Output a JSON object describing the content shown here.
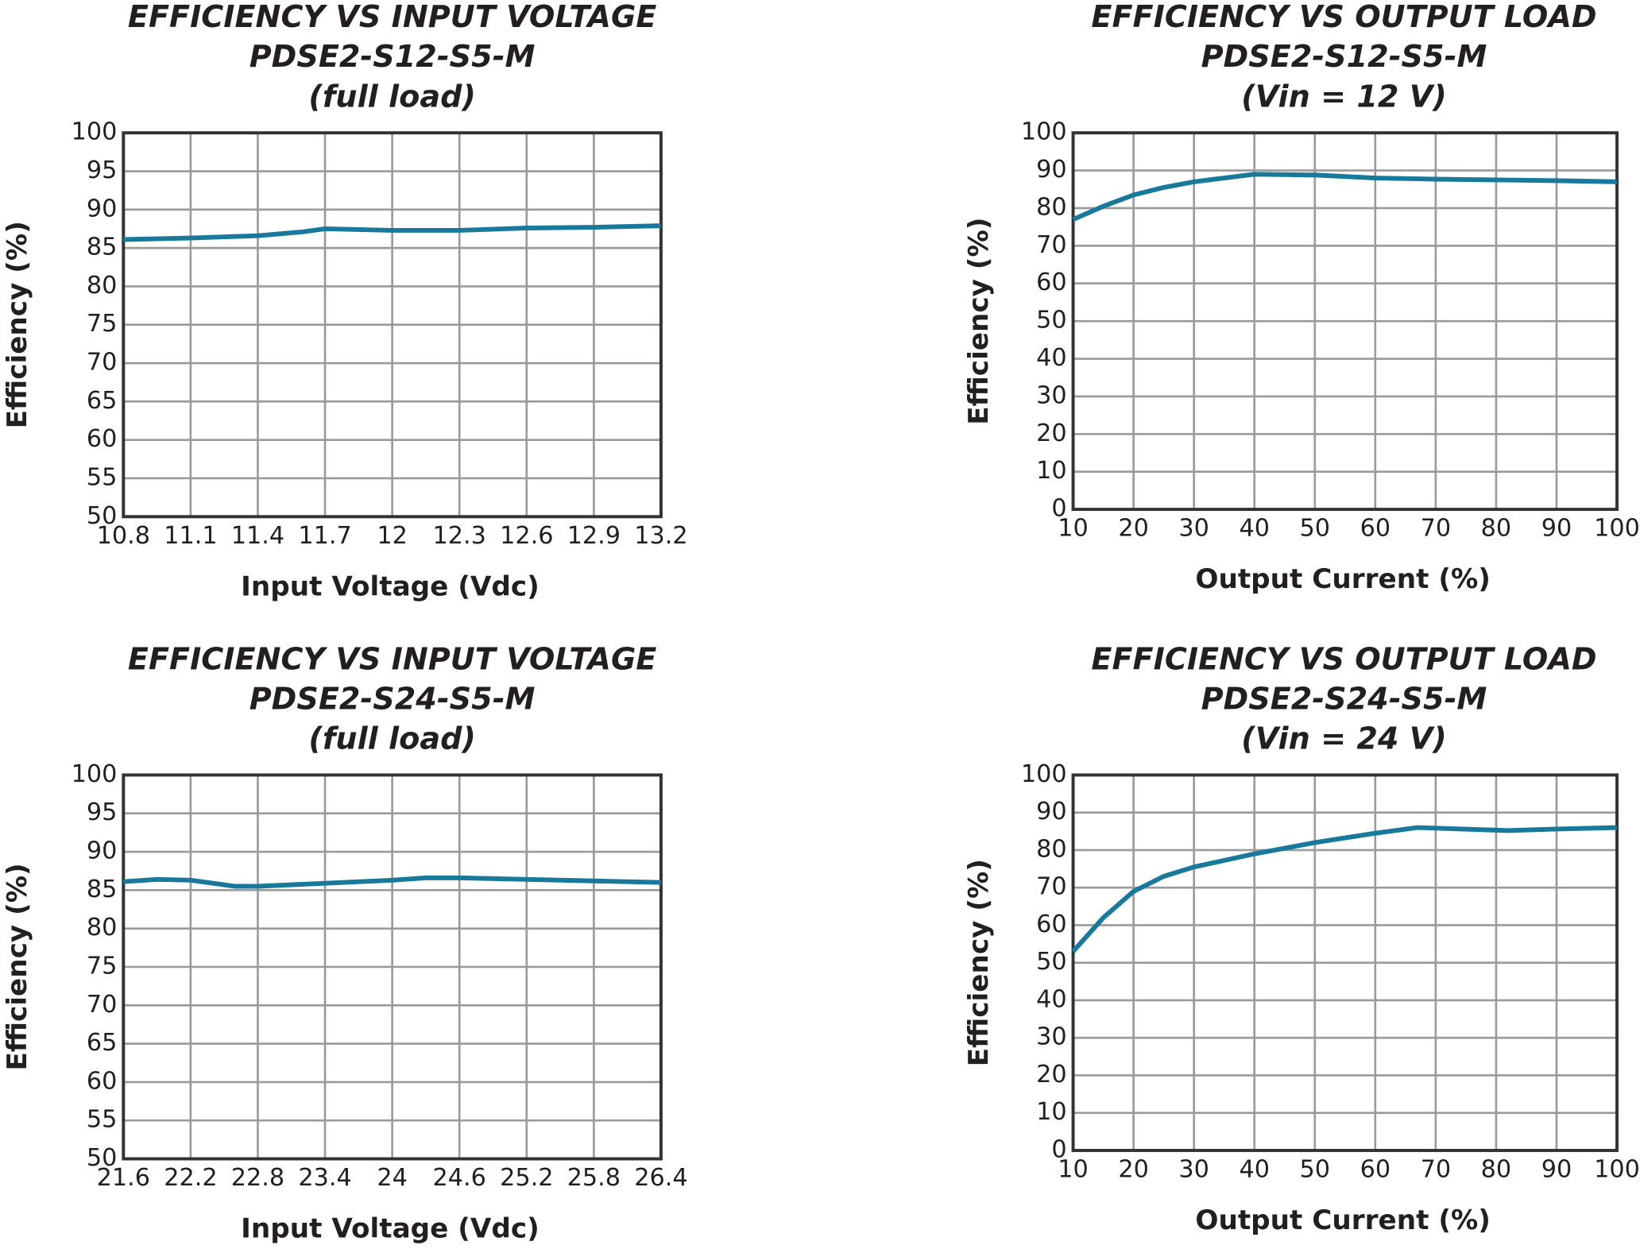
{
  "chart_data": [
    {
      "type": "line",
      "title": [
        "EFFICIENCY VS INPUT VOLTAGE",
        "PDSE2-S12-S5-M",
        "(full load)"
      ],
      "x_label": "Input Voltage (Vdc)",
      "y_label": "Efficiency (%)",
      "x": [
        10.8,
        11.1,
        11.4,
        11.6,
        11.7,
        12,
        12.3,
        12.6,
        12.9,
        13.2
      ],
      "series": [
        {
          "color": "#18799b",
          "values": [
            86.1,
            86.3,
            86.6,
            87.1,
            87.5,
            87.3,
            87.3,
            87.6,
            87.7,
            87.9
          ]
        }
      ],
      "xlim": [
        10.8,
        13.2
      ],
      "xticks": [
        10.8,
        11.1,
        11.4,
        11.7,
        12,
        12.3,
        12.6,
        12.9,
        13.2
      ],
      "ylim": [
        50,
        100
      ],
      "yticks": [
        50,
        55,
        60,
        65,
        70,
        75,
        80,
        85,
        90,
        95,
        100
      ],
      "grid": true
    },
    {
      "type": "line",
      "title": [
        "EFFICIENCY VS OUTPUT LOAD",
        "PDSE2-S12-S5-M",
        "(Vin = 12 V)"
      ],
      "x_label": "Output Current (%)",
      "y_label": "Efficiency (%)",
      "x": [
        10,
        15,
        20,
        25,
        30,
        35,
        40,
        50,
        60,
        70,
        80,
        90,
        100
      ],
      "series": [
        {
          "color": "#18799b",
          "values": [
            77,
            80.5,
            83.5,
            85.5,
            87,
            88,
            89,
            88.8,
            88,
            87.7,
            87.5,
            87.3,
            87
          ]
        }
      ],
      "xlim": [
        10,
        100
      ],
      "xticks": [
        10,
        20,
        30,
        40,
        50,
        60,
        70,
        80,
        90,
        100
      ],
      "ylim": [
        0,
        100
      ],
      "yticks": [
        0,
        10,
        20,
        30,
        40,
        50,
        60,
        70,
        80,
        90,
        100
      ],
      "grid": true
    },
    {
      "type": "line",
      "title": [
        "EFFICIENCY VS INPUT VOLTAGE",
        "PDSE2-S24-S5-M",
        "(full load)"
      ],
      "x_label": "Input Voltage (Vdc)",
      "y_label": "Efficiency (%)",
      "x": [
        21.6,
        21.9,
        22.2,
        22.6,
        22.8,
        23.4,
        24,
        24.3,
        24.6,
        25.2,
        25.8,
        26.4
      ],
      "series": [
        {
          "color": "#18799b",
          "values": [
            86.1,
            86.4,
            86.3,
            85.5,
            85.5,
            85.9,
            86.3,
            86.6,
            86.6,
            86.4,
            86.2,
            86.0
          ]
        }
      ],
      "xlim": [
        21.6,
        26.4
      ],
      "xticks": [
        21.6,
        22.2,
        22.8,
        23.4,
        24,
        24.6,
        25.2,
        25.8,
        26.4
      ],
      "ylim": [
        50,
        100
      ],
      "yticks": [
        50,
        55,
        60,
        65,
        70,
        75,
        80,
        85,
        90,
        95,
        100
      ],
      "grid": true
    },
    {
      "type": "line",
      "title": [
        "EFFICIENCY VS OUTPUT LOAD",
        "PDSE2-S24-S5-M",
        "(Vin = 24 V)"
      ],
      "x_label": "Output Current (%)",
      "y_label": "Efficiency (%)",
      "x": [
        10,
        15,
        20,
        25,
        30,
        40,
        50,
        60,
        67,
        82,
        90,
        100
      ],
      "series": [
        {
          "color": "#18799b",
          "values": [
            53,
            62,
            69,
            73,
            75.5,
            79,
            82,
            84.5,
            86,
            85.2,
            85.6,
            86
          ]
        }
      ],
      "xlim": [
        10,
        100
      ],
      "xticks": [
        10,
        20,
        30,
        40,
        50,
        60,
        70,
        80,
        90,
        100
      ],
      "ylim": [
        0,
        100
      ],
      "yticks": [
        0,
        10,
        20,
        30,
        40,
        50,
        60,
        70,
        80,
        90,
        100
      ],
      "grid": true
    }
  ]
}
